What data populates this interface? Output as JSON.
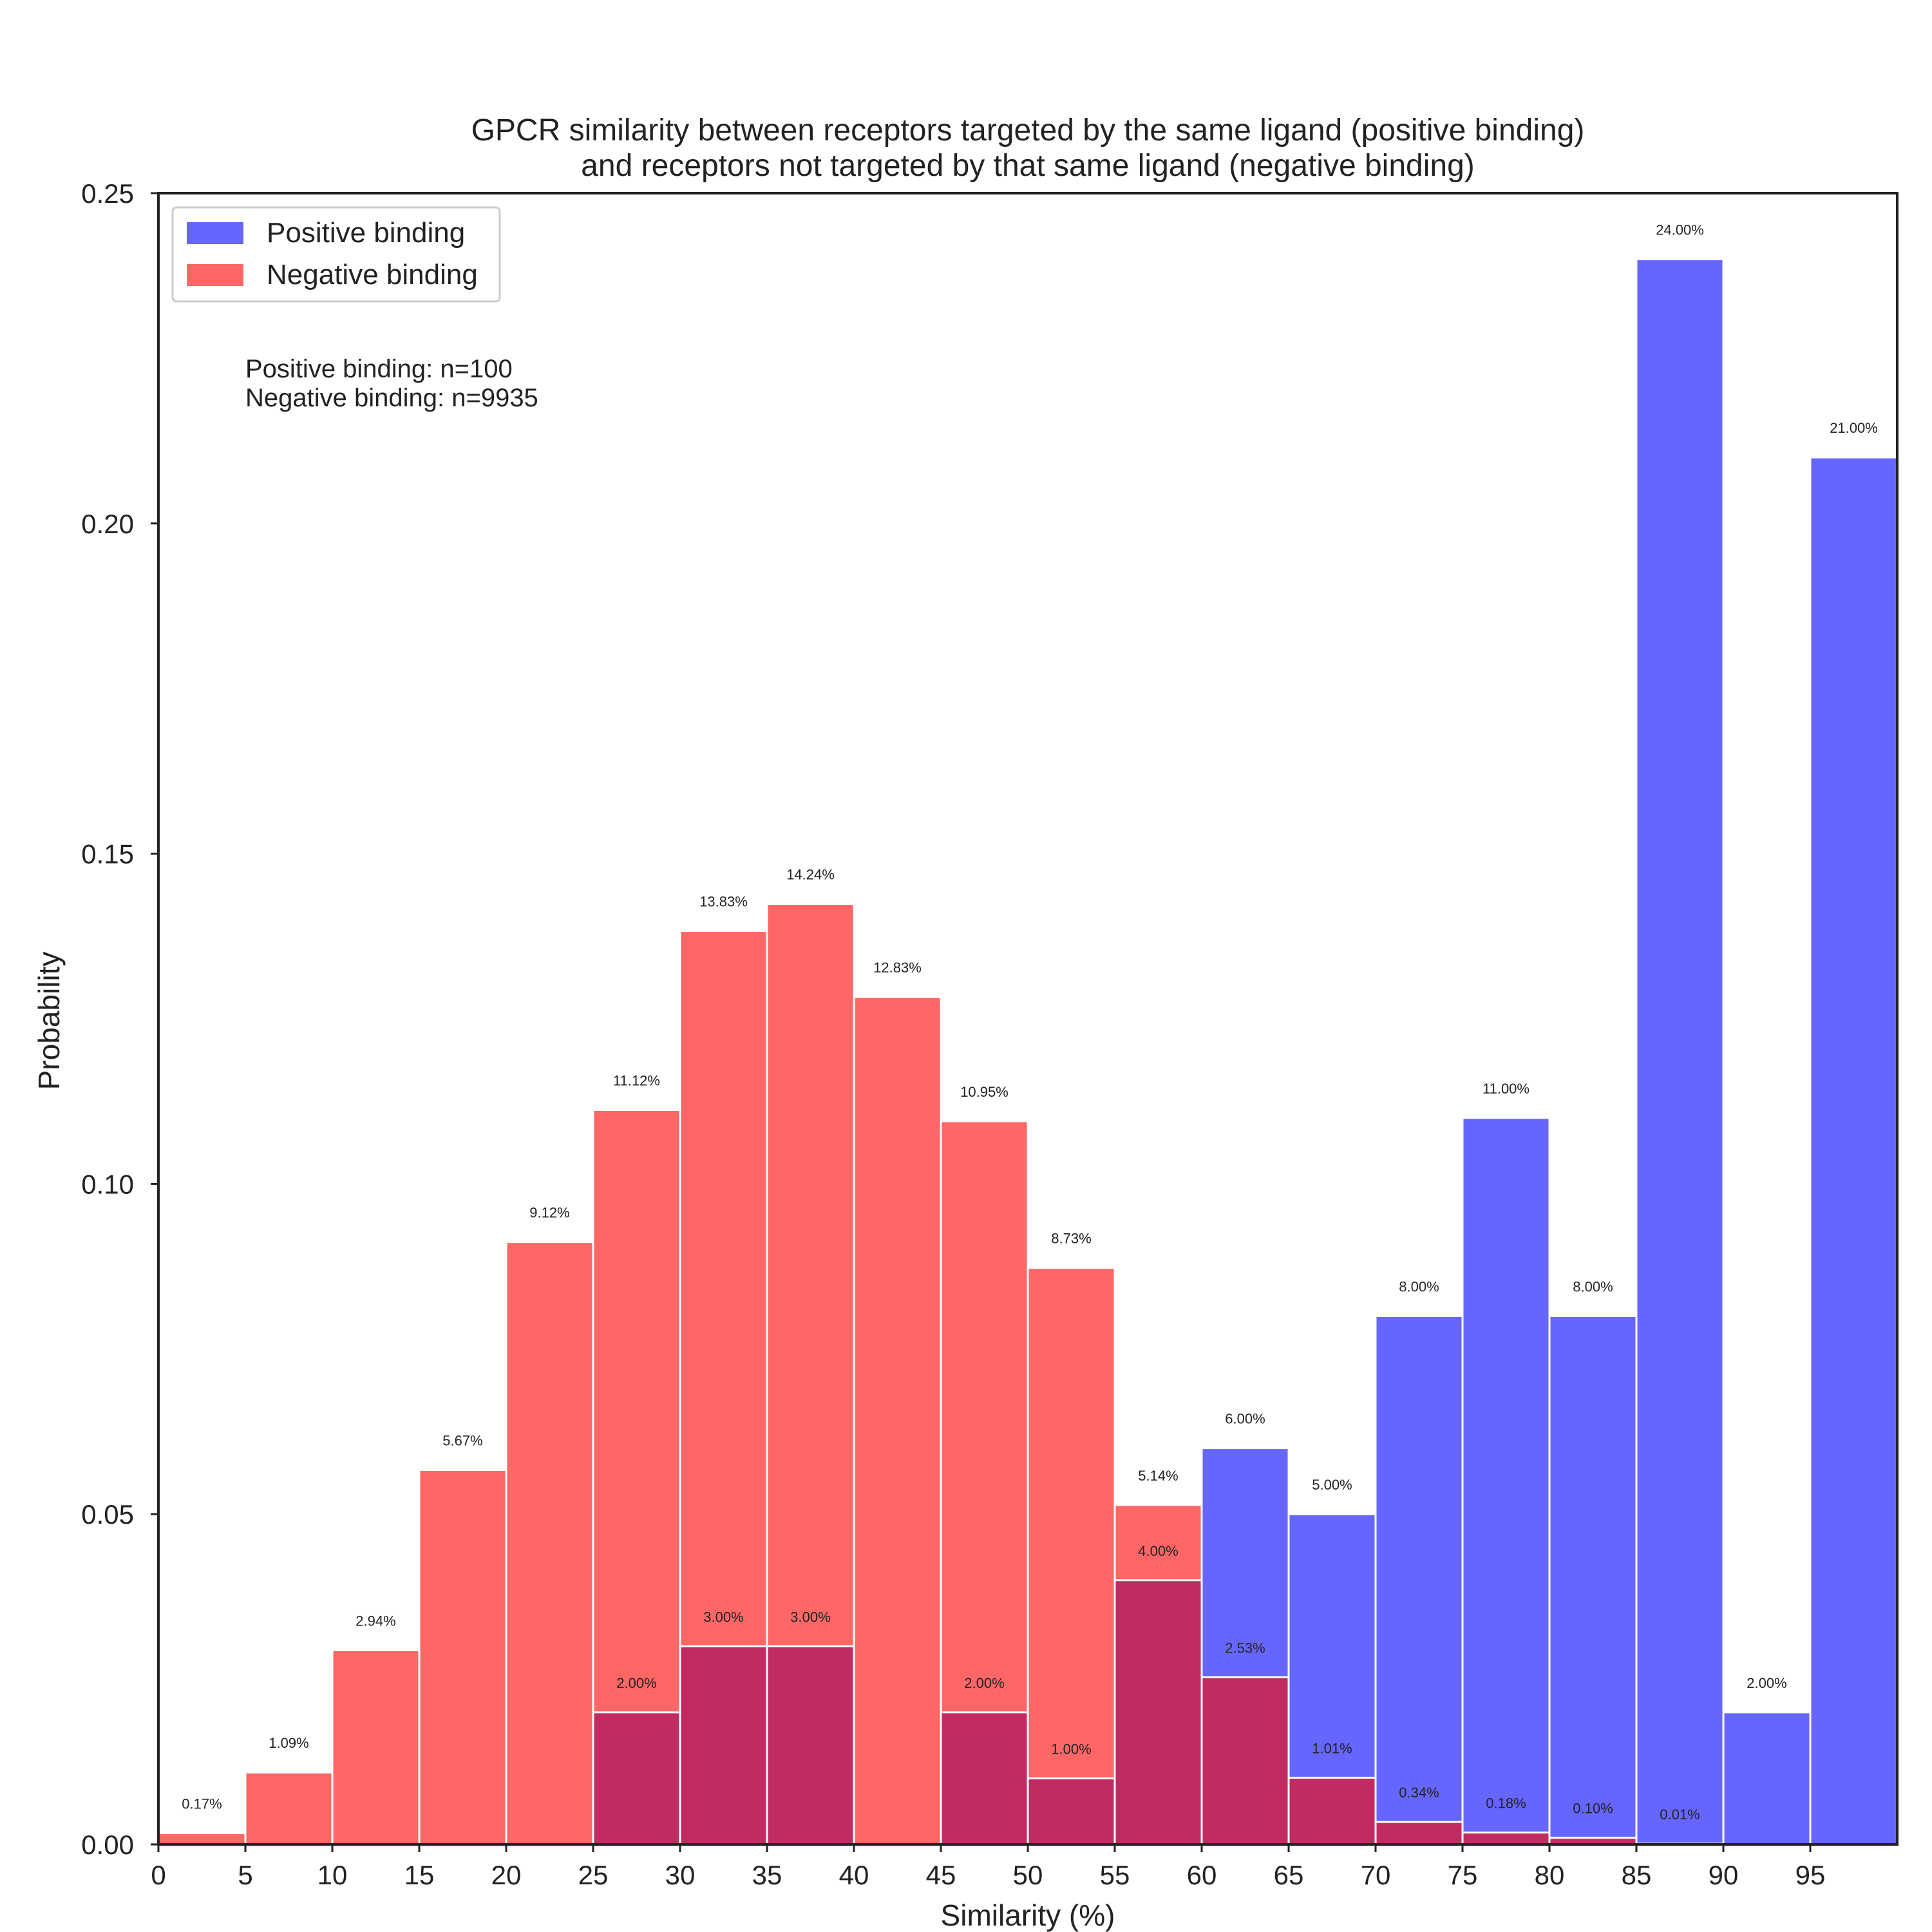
{
  "chart_data": {
    "type": "bar",
    "title_line1": "GPCR similarity between receptors targeted by the same ligand (positive binding)",
    "title_line2": "and receptors not targeted by that same ligand (negative binding)",
    "xlabel": "Similarity (%)",
    "ylabel": "Probability",
    "xlim": [
      0,
      100
    ],
    "ylim": [
      0,
      0.25
    ],
    "x_ticks": [
      0,
      5,
      10,
      15,
      20,
      25,
      30,
      35,
      40,
      45,
      50,
      55,
      60,
      65,
      70,
      75,
      80,
      85,
      90,
      95
    ],
    "y_ticks": [
      "0.00",
      "0.05",
      "0.10",
      "0.15",
      "0.20",
      "0.25"
    ],
    "bin_width": 5,
    "grid": false,
    "legend_position": "top-left",
    "annotation_lines": [
      "Positive binding: n=100",
      "Negative binding: n=9935"
    ],
    "series": [
      {
        "name": "Positive binding",
        "color": "#6666ff",
        "bins": [
          {
            "x": 25,
            "value": 0.02,
            "label": "2.00%"
          },
          {
            "x": 30,
            "value": 0.03,
            "label": "3.00%"
          },
          {
            "x": 35,
            "value": 0.03,
            "label": "3.00%"
          },
          {
            "x": 45,
            "value": 0.02,
            "label": "2.00%"
          },
          {
            "x": 50,
            "value": 0.01,
            "label": "1.00%"
          },
          {
            "x": 55,
            "value": 0.04,
            "label": "4.00%"
          },
          {
            "x": 60,
            "value": 0.06,
            "label": "6.00%"
          },
          {
            "x": 65,
            "value": 0.05,
            "label": "5.00%"
          },
          {
            "x": 70,
            "value": 0.08,
            "label": "8.00%"
          },
          {
            "x": 75,
            "value": 0.11,
            "label": "11.00%"
          },
          {
            "x": 80,
            "value": 0.08,
            "label": "8.00%"
          },
          {
            "x": 85,
            "value": 0.24,
            "label": "24.00%"
          },
          {
            "x": 90,
            "value": 0.02,
            "label": "2.00%"
          },
          {
            "x": 95,
            "value": 0.21,
            "label": "21.00%"
          }
        ]
      },
      {
        "name": "Negative binding",
        "color": "#ff6666",
        "bins": [
          {
            "x": 0,
            "value": 0.0017,
            "label": "0.17%"
          },
          {
            "x": 5,
            "value": 0.0109,
            "label": "1.09%"
          },
          {
            "x": 10,
            "value": 0.0294,
            "label": "2.94%"
          },
          {
            "x": 15,
            "value": 0.0567,
            "label": "5.67%"
          },
          {
            "x": 20,
            "value": 0.0912,
            "label": "9.12%"
          },
          {
            "x": 25,
            "value": 0.1112,
            "label": "11.12%"
          },
          {
            "x": 30,
            "value": 0.1383,
            "label": "13.83%"
          },
          {
            "x": 35,
            "value": 0.1424,
            "label": "14.24%"
          },
          {
            "x": 40,
            "value": 0.1283,
            "label": "12.83%"
          },
          {
            "x": 45,
            "value": 0.1095,
            "label": "10.95%"
          },
          {
            "x": 50,
            "value": 0.0873,
            "label": "8.73%"
          },
          {
            "x": 55,
            "value": 0.0514,
            "label": "5.14%"
          },
          {
            "x": 60,
            "value": 0.0253,
            "label": "2.53%"
          },
          {
            "x": 65,
            "value": 0.0101,
            "label": "1.01%"
          },
          {
            "x": 70,
            "value": 0.0034,
            "label": "0.34%"
          },
          {
            "x": 75,
            "value": 0.0018,
            "label": "0.18%"
          },
          {
            "x": 80,
            "value": 0.001,
            "label": "0.10%"
          },
          {
            "x": 85,
            "value": 0.0001,
            "label": "0.01%"
          }
        ]
      }
    ],
    "overlap_color": "#c12a62"
  }
}
